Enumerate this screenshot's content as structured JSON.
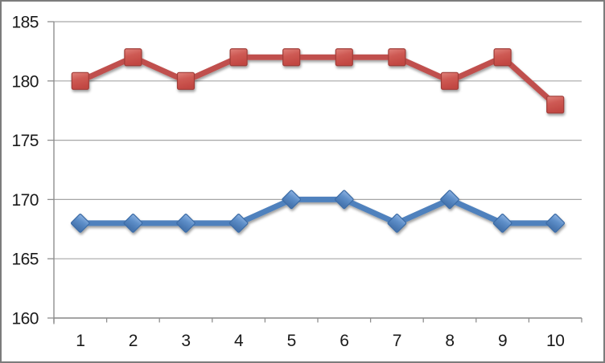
{
  "window": {
    "background": "#FFFFFF",
    "frame_border_color": "#7C7C7C"
  },
  "chart_data": {
    "type": "line",
    "title": "",
    "subtitle": "",
    "xlabel": "",
    "ylabel": "",
    "categories": [
      "1",
      "2",
      "3",
      "4",
      "5",
      "6",
      "7",
      "8",
      "9",
      "10"
    ],
    "series": [
      {
        "name": "red",
        "marker": "square",
        "values": [
          180,
          182,
          180,
          182,
          182,
          182,
          182,
          180,
          182,
          178
        ],
        "line_color": "#C0504D",
        "marker_fill_top": "#E0837C",
        "marker_fill_mid": "#CE5A54",
        "marker_fill_bottom": "#C14742",
        "marker_border": "#A03C38"
      },
      {
        "name": "blue",
        "marker": "diamond",
        "values": [
          168,
          168,
          168,
          168,
          170,
          170,
          168,
          170,
          168,
          168
        ],
        "line_color": "#4F81BD",
        "marker_fill_top": "#8FB3E2",
        "marker_fill_mid": "#5E8FC9",
        "marker_fill_bottom": "#4674AE",
        "marker_border": "#3C6CA6"
      }
    ],
    "ylim": [
      160,
      185
    ],
    "yticks": [
      160,
      165,
      170,
      175,
      180,
      185
    ],
    "ytick_labels": [
      "160",
      "165",
      "170",
      "175",
      "180",
      "185"
    ],
    "grid": true,
    "legend": "none",
    "gridline_color": "#A6A6A6",
    "axis_color": "#8E8E8E",
    "tick_label_color": "#1A1A1A"
  }
}
